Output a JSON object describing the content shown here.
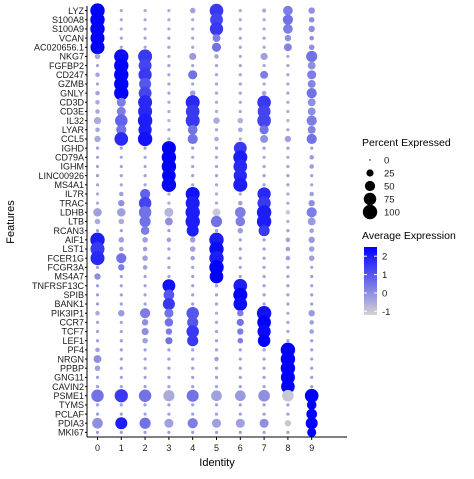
{
  "chart_data": {
    "type": "dotplot",
    "xlabel": "Identity",
    "ylabel": "Features",
    "clusters": [
      "0",
      "1",
      "2",
      "3",
      "4",
      "5",
      "6",
      "7",
      "8",
      "9"
    ],
    "genes": [
      "LYZ",
      "S100A8",
      "S100A9",
      "VCAN",
      "AC020656.1",
      "NKG7",
      "FGFBP2",
      "CD247",
      "GZMB",
      "GNLY",
      "CD3D",
      "CD3E",
      "IL32",
      "LYAR",
      "CCL5",
      "IGHD",
      "CD79A",
      "IGHM",
      "LINC00926",
      "MS4A1",
      "IL7R",
      "TRAC",
      "LDHB",
      "LTB",
      "RCAN3",
      "AIF1",
      "LST1",
      "FCER1G",
      "FCGR3A",
      "MS4A7",
      "TNFRSF13C",
      "SPIB",
      "BANK1",
      "PIK3IP1",
      "CCR7",
      "TCF7",
      "LEF1",
      "PF4",
      "NRGN",
      "PPBP",
      "GNG11",
      "CAVIN2",
      "PSME1",
      "TYMS",
      "PCLAF",
      "PDIA3",
      "MKI67"
    ],
    "pct_expressed": [
      [
        100,
        5,
        5,
        5,
        15,
        90,
        5,
        8,
        45,
        20
      ],
      [
        100,
        5,
        5,
        5,
        5,
        80,
        5,
        5,
        50,
        15
      ],
      [
        100,
        5,
        5,
        5,
        5,
        85,
        5,
        5,
        45,
        20
      ],
      [
        95,
        5,
        5,
        5,
        5,
        30,
        5,
        5,
        20,
        10
      ],
      [
        95,
        5,
        5,
        5,
        5,
        40,
        5,
        5,
        30,
        15
      ],
      [
        15,
        100,
        95,
        5,
        25,
        10,
        5,
        25,
        5,
        60
      ],
      [
        5,
        100,
        80,
        5,
        5,
        5,
        5,
        5,
        5,
        30
      ],
      [
        10,
        100,
        85,
        5,
        40,
        5,
        5,
        30,
        5,
        40
      ],
      [
        5,
        100,
        70,
        5,
        5,
        5,
        5,
        5,
        5,
        30
      ],
      [
        10,
        100,
        80,
        5,
        15,
        5,
        5,
        10,
        5,
        50
      ],
      [
        10,
        40,
        95,
        5,
        95,
        5,
        5,
        90,
        5,
        30
      ],
      [
        10,
        40,
        95,
        5,
        90,
        5,
        5,
        80,
        5,
        30
      ],
      [
        25,
        75,
        100,
        5,
        95,
        20,
        15,
        90,
        5,
        50
      ],
      [
        10,
        50,
        85,
        5,
        45,
        5,
        10,
        40,
        5,
        30
      ],
      [
        20,
        90,
        100,
        5,
        50,
        10,
        5,
        30,
        20,
        50
      ],
      [
        5,
        5,
        5,
        95,
        5,
        5,
        80,
        5,
        5,
        5
      ],
      [
        5,
        5,
        5,
        100,
        5,
        5,
        95,
        5,
        5,
        10
      ],
      [
        5,
        5,
        5,
        100,
        5,
        5,
        90,
        5,
        5,
        10
      ],
      [
        5,
        5,
        5,
        90,
        5,
        5,
        85,
        5,
        5,
        5
      ],
      [
        5,
        5,
        5,
        100,
        5,
        5,
        95,
        5,
        5,
        5
      ],
      [
        5,
        10,
        50,
        5,
        95,
        5,
        5,
        85,
        5,
        10
      ],
      [
        5,
        20,
        75,
        5,
        95,
        5,
        10,
        85,
        5,
        20
      ],
      [
        35,
        35,
        75,
        40,
        100,
        30,
        55,
        100,
        10,
        50
      ],
      [
        15,
        15,
        60,
        30,
        100,
        60,
        45,
        100,
        5,
        30
      ],
      [
        5,
        5,
        35,
        5,
        70,
        5,
        15,
        60,
        5,
        10
      ],
      [
        100,
        15,
        15,
        10,
        15,
        100,
        5,
        5,
        10,
        20
      ],
      [
        95,
        10,
        10,
        5,
        15,
        100,
        5,
        5,
        10,
        15
      ],
      [
        95,
        50,
        15,
        5,
        10,
        100,
        5,
        5,
        10,
        15
      ],
      [
        5,
        20,
        10,
        5,
        5,
        100,
        5,
        5,
        5,
        5
      ],
      [
        20,
        5,
        5,
        5,
        5,
        90,
        5,
        5,
        5,
        5
      ],
      [
        5,
        5,
        5,
        80,
        5,
        5,
        90,
        5,
        5,
        5
      ],
      [
        5,
        5,
        5,
        55,
        5,
        5,
        95,
        5,
        5,
        5
      ],
      [
        5,
        5,
        5,
        70,
        5,
        5,
        90,
        5,
        5,
        5
      ],
      [
        10,
        20,
        50,
        40,
        75,
        5,
        20,
        100,
        5,
        20
      ],
      [
        5,
        5,
        20,
        35,
        60,
        5,
        25,
        90,
        5,
        10
      ],
      [
        5,
        5,
        25,
        20,
        75,
        5,
        20,
        85,
        5,
        10
      ],
      [
        5,
        5,
        15,
        25,
        60,
        5,
        15,
        75,
        5,
        5
      ],
      [
        10,
        5,
        5,
        5,
        5,
        5,
        5,
        5,
        100,
        5
      ],
      [
        30,
        5,
        5,
        5,
        5,
        10,
        5,
        5,
        100,
        5
      ],
      [
        15,
        5,
        5,
        5,
        5,
        5,
        5,
        5,
        100,
        5
      ],
      [
        5,
        5,
        5,
        5,
        5,
        5,
        5,
        5,
        95,
        5
      ],
      [
        5,
        5,
        5,
        5,
        5,
        5,
        5,
        5,
        90,
        5
      ],
      [
        75,
        85,
        75,
        60,
        70,
        55,
        55,
        65,
        65,
        90
      ],
      [
        5,
        5,
        5,
        5,
        5,
        5,
        5,
        5,
        5,
        45
      ],
      [
        5,
        5,
        5,
        5,
        5,
        5,
        5,
        5,
        5,
        55
      ],
      [
        55,
        70,
        60,
        40,
        50,
        40,
        40,
        40,
        20,
        70
      ],
      [
        5,
        5,
        5,
        5,
        5,
        5,
        5,
        5,
        5,
        40
      ]
    ],
    "avg_expression": [
      [
        2.5,
        -0.5,
        -0.5,
        -0.5,
        -0.3,
        1.5,
        -0.5,
        -0.5,
        0.3,
        0.0
      ],
      [
        2.6,
        -0.5,
        -0.5,
        -0.5,
        -0.5,
        1.3,
        -0.5,
        -0.5,
        0.5,
        0.0
      ],
      [
        2.6,
        -0.5,
        -0.5,
        -0.5,
        -0.5,
        1.5,
        -0.5,
        -0.5,
        0.3,
        0.0
      ],
      [
        2.6,
        -0.4,
        -0.4,
        -0.4,
        -0.4,
        0.3,
        -0.4,
        -0.4,
        0.0,
        0.0
      ],
      [
        2.6,
        -0.4,
        -0.4,
        -0.4,
        -0.4,
        0.5,
        -0.4,
        -0.4,
        0.2,
        0.0
      ],
      [
        -0.4,
        2.3,
        1.5,
        -0.5,
        -0.2,
        -0.4,
        -0.5,
        -0.3,
        -0.5,
        0.5
      ],
      [
        -0.4,
        2.6,
        1.3,
        -0.4,
        -0.4,
        -0.4,
        -0.4,
        -0.4,
        -0.4,
        0.0
      ],
      [
        -0.4,
        2.5,
        1.5,
        -0.4,
        0.5,
        -0.4,
        -0.4,
        0.3,
        -0.4,
        0.3
      ],
      [
        -0.4,
        2.6,
        1.0,
        -0.4,
        -0.4,
        -0.4,
        -0.4,
        -0.4,
        -0.4,
        0.2
      ],
      [
        -0.4,
        2.5,
        1.3,
        -0.4,
        -0.3,
        -0.4,
        -0.4,
        -0.4,
        -0.4,
        0.5
      ],
      [
        -0.5,
        0.3,
        1.8,
        -0.5,
        1.8,
        -0.5,
        -0.5,
        1.5,
        -0.5,
        0.0
      ],
      [
        -0.5,
        0.3,
        1.8,
        -0.5,
        1.5,
        -0.5,
        -0.5,
        1.3,
        -0.5,
        0.0
      ],
      [
        -0.5,
        0.8,
        2.0,
        -0.6,
        1.5,
        -0.5,
        -0.6,
        1.3,
        -0.6,
        0.3
      ],
      [
        -0.4,
        0.5,
        2.0,
        -0.4,
        0.5,
        -0.4,
        -0.4,
        0.5,
        -0.4,
        0.2
      ],
      [
        -0.5,
        1.8,
        2.2,
        -0.5,
        0.5,
        -0.5,
        -0.5,
        0.0,
        -0.3,
        0.5
      ],
      [
        -0.3,
        -0.3,
        -0.3,
        2.8,
        -0.3,
        -0.3,
        1.5,
        -0.3,
        -0.3,
        -0.3
      ],
      [
        -0.4,
        -0.4,
        -0.4,
        2.5,
        -0.4,
        -0.4,
        2.0,
        -0.4,
        -0.4,
        -0.2
      ],
      [
        -0.4,
        -0.4,
        -0.4,
        2.6,
        -0.4,
        -0.4,
        1.8,
        -0.4,
        -0.4,
        -0.2
      ],
      [
        -0.3,
        -0.3,
        -0.3,
        2.5,
        -0.3,
        -0.3,
        1.8,
        -0.3,
        -0.3,
        -0.3
      ],
      [
        -0.4,
        -0.4,
        -0.4,
        2.4,
        -0.4,
        -0.4,
        2.0,
        -0.4,
        -0.4,
        -0.4
      ],
      [
        -0.5,
        -0.3,
        0.8,
        -0.5,
        2.2,
        -0.5,
        -0.5,
        1.8,
        -0.5,
        -0.3
      ],
      [
        -0.5,
        0.0,
        1.3,
        -0.5,
        2.0,
        -0.5,
        -0.3,
        1.5,
        -0.5,
        0.0
      ],
      [
        -0.3,
        -0.3,
        0.5,
        -0.7,
        2.0,
        -1.0,
        0.3,
        2.0,
        -1.0,
        0.3
      ],
      [
        -0.5,
        -0.5,
        0.5,
        0.0,
        2.0,
        0.5,
        0.3,
        2.0,
        -0.5,
        -0.2
      ],
      [
        -0.3,
        -0.3,
        0.3,
        -0.3,
        2.0,
        -0.3,
        -0.3,
        1.5,
        -0.3,
        -0.3
      ],
      [
        2.0,
        -0.3,
        -0.3,
        -0.3,
        -0.3,
        2.0,
        -0.3,
        -0.3,
        -0.3,
        -0.2
      ],
      [
        1.5,
        -0.3,
        -0.3,
        -0.3,
        -0.3,
        2.3,
        -0.3,
        -0.3,
        -0.3,
        -0.3
      ],
      [
        1.8,
        0.5,
        -0.3,
        -0.3,
        -0.3,
        2.0,
        -0.3,
        -0.3,
        -0.3,
        -0.3
      ],
      [
        -0.4,
        0.3,
        -0.3,
        -0.4,
        -0.4,
        2.6,
        -0.4,
        -0.4,
        -0.4,
        -0.4
      ],
      [
        0.0,
        -0.3,
        -0.3,
        -0.3,
        -0.3,
        2.8,
        -0.3,
        -0.3,
        -0.3,
        -0.3
      ],
      [
        -0.3,
        -0.3,
        -0.3,
        2.2,
        -0.3,
        -0.3,
        2.0,
        -0.3,
        -0.3,
        -0.3
      ],
      [
        -0.3,
        -0.3,
        -0.3,
        1.0,
        -0.3,
        -0.3,
        2.5,
        -0.3,
        -0.3,
        -0.3
      ],
      [
        -0.3,
        -0.3,
        -0.3,
        1.5,
        -0.3,
        -0.3,
        2.3,
        -0.3,
        -0.3,
        -0.3
      ],
      [
        -0.5,
        -0.2,
        0.3,
        0.5,
        1.0,
        -0.5,
        0.3,
        2.2,
        -0.5,
        -0.2
      ],
      [
        -0.4,
        -0.4,
        0.0,
        0.5,
        1.0,
        -0.4,
        0.5,
        2.5,
        -0.4,
        -0.3
      ],
      [
        -0.4,
        -0.4,
        0.0,
        0.3,
        1.5,
        -0.4,
        0.3,
        2.3,
        -0.4,
        -0.3
      ],
      [
        -0.3,
        -0.3,
        -0.3,
        0.5,
        1.5,
        -0.3,
        0.3,
        2.5,
        -0.3,
        -0.3
      ],
      [
        -0.3,
        -0.3,
        -0.3,
        -0.3,
        -0.3,
        -0.3,
        -0.3,
        -0.3,
        2.8,
        -0.3
      ],
      [
        0.0,
        -0.3,
        -0.3,
        -0.3,
        -0.3,
        -0.3,
        -0.3,
        -0.3,
        2.8,
        -0.3
      ],
      [
        -0.3,
        -0.3,
        -0.3,
        -0.3,
        -0.3,
        -0.3,
        -0.3,
        -0.3,
        2.8,
        -0.3
      ],
      [
        -0.3,
        -0.3,
        -0.3,
        -0.3,
        -0.3,
        -0.3,
        -0.3,
        -0.3,
        2.8,
        -0.3
      ],
      [
        -0.3,
        -0.3,
        -0.3,
        -0.3,
        -0.3,
        -0.3,
        -0.3,
        -0.3,
        2.8,
        -0.3
      ],
      [
        0.5,
        1.5,
        0.5,
        -0.5,
        0.5,
        -0.3,
        -0.2,
        0.0,
        -1.0,
        2.5
      ],
      [
        -0.3,
        -0.3,
        -0.3,
        -0.3,
        -0.3,
        -0.3,
        -0.3,
        -0.3,
        -0.3,
        2.8
      ],
      [
        -0.3,
        -0.3,
        -0.3,
        -0.3,
        -0.3,
        -0.3,
        -0.3,
        -0.3,
        -0.3,
        2.8
      ],
      [
        0.0,
        2.0,
        0.5,
        -0.3,
        0.3,
        -0.3,
        -0.3,
        0.0,
        -1.0,
        2.5
      ],
      [
        -0.3,
        -0.3,
        -0.3,
        -0.3,
        -0.3,
        -0.3,
        -0.3,
        -0.3,
        -0.3,
        2.8
      ]
    ],
    "size_legend": {
      "title": "Percent Expressed",
      "labels": [
        "0",
        "25",
        "50",
        "75",
        "100"
      ],
      "values": [
        0,
        25,
        50,
        75,
        100
      ]
    },
    "color_legend": {
      "title": "Average Expression",
      "labels": [
        "2",
        "1",
        "0",
        "-1"
      ],
      "values": [
        2,
        1,
        0,
        -1
      ],
      "range": [
        -1.2,
        2.5
      ],
      "low_color": "#d3d3d3",
      "high_color": "#0000ff"
    },
    "grid": false,
    "legend_position": "right"
  }
}
